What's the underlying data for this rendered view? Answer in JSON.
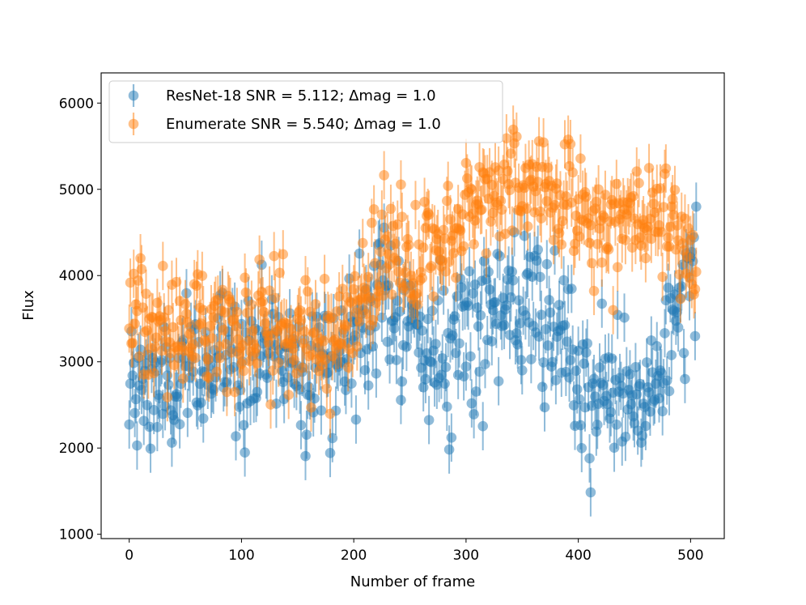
{
  "chart_data": {
    "type": "scatter",
    "title": "",
    "xlabel": "Number of frame",
    "ylabel": "Flux",
    "xlim": [
      -25,
      530
    ],
    "ylim": [
      950,
      6350
    ],
    "xticks": [
      0,
      100,
      200,
      300,
      400,
      500
    ],
    "xtick_labels": [
      "0",
      "100",
      "200",
      "300",
      "400",
      "500"
    ],
    "yticks": [
      1000,
      2000,
      3000,
      4000,
      5000,
      6000
    ],
    "ytick_labels": [
      "1000",
      "2000",
      "3000",
      "4000",
      "5000",
      "6000"
    ],
    "grid": false,
    "legend_position": "top-left",
    "error_bars": true,
    "x_range": [
      0,
      505
    ],
    "n_frames": 506,
    "series": [
      {
        "name": "ResNet-18",
        "label": "ResNet-18 SNR = 5.112; Δmag = 1.0",
        "color": "#1f77b4",
        "snr": 5.112,
        "delta_mag": 1.0,
        "error": 280,
        "trend_x": [
          0,
          20,
          40,
          60,
          80,
          100,
          120,
          140,
          160,
          180,
          200,
          220,
          240,
          260,
          280,
          300,
          320,
          340,
          360,
          380,
          400,
          420,
          440,
          460,
          480,
          505
        ],
        "trend_y": [
          2550,
          2750,
          2600,
          2900,
          3050,
          3100,
          3150,
          3150,
          3000,
          2950,
          3300,
          3700,
          3700,
          3200,
          3000,
          3500,
          3600,
          3500,
          3600,
          3200,
          2800,
          2600,
          2600,
          2500,
          3300,
          3900
        ],
        "scatter": 420
      },
      {
        "name": "Enumerate",
        "label": "Enumerate SNR = 5.540; Δmag = 1.0",
        "color": "#ff7f0e",
        "snr": 5.54,
        "delta_mag": 1.0,
        "error": 280,
        "trend_x": [
          0,
          20,
          40,
          60,
          80,
          100,
          120,
          140,
          160,
          180,
          200,
          220,
          240,
          260,
          280,
          300,
          320,
          340,
          360,
          380,
          400,
          420,
          440,
          460,
          480,
          505
        ],
        "trend_y": [
          3700,
          3400,
          3300,
          3450,
          3400,
          3450,
          3450,
          3500,
          3250,
          3150,
          3600,
          4050,
          4250,
          4200,
          4350,
          4750,
          4950,
          5050,
          5050,
          5000,
          4800,
          4600,
          4600,
          4700,
          4600,
          4100
        ],
        "scatter": 330
      }
    ]
  }
}
